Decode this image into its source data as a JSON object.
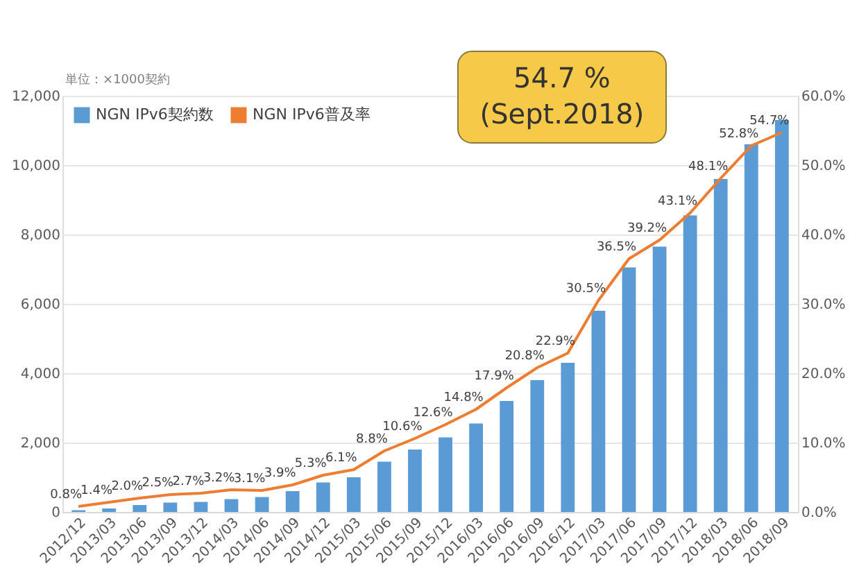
{
  "chart_data": {
    "type": "bar",
    "categories": [
      "2012/12",
      "2013/03",
      "2013/06",
      "2013/09",
      "2013/12",
      "2014/03",
      "2014/06",
      "2014/09",
      "2014/12",
      "2015/03",
      "2015/06",
      "2015/09",
      "2015/12",
      "2016/03",
      "2016/06",
      "2016/09",
      "2016/12",
      "2017/03",
      "2017/06",
      "2017/09",
      "2017/12",
      "2018/03",
      "2018/06",
      "2018/09"
    ],
    "series": [
      {
        "name": "NGN IPv6契約数",
        "color": "#5b9bd5",
        "values": [
          50,
          100,
          200,
          270,
          290,
          370,
          430,
          600,
          850,
          1000,
          1450,
          1800,
          2150,
          2550,
          3200,
          3800,
          4300,
          5800,
          7050,
          7650,
          8550,
          9600,
          10600,
          11300
        ]
      },
      {
        "name": "NGN IPv6普及率",
        "type": "line",
        "axis": "y2",
        "color": "#ed7d31",
        "values": [
          0.8,
          1.4,
          2.0,
          2.5,
          2.7,
          3.2,
          3.1,
          3.9,
          5.3,
          6.1,
          8.8,
          10.6,
          12.6,
          14.8,
          17.9,
          20.8,
          22.9,
          30.5,
          36.5,
          39.2,
          43.1,
          48.1,
          52.8,
          54.7
        ],
        "value_labels": [
          "0.8%",
          "1.4%",
          "2.0%",
          "2.5%",
          "2.7%",
          "3.2%",
          "3.1%",
          "3.9%",
          "5.3%",
          "6.1%",
          "8.8%",
          "10.6%",
          "12.6%",
          "14.8%",
          "17.9%",
          "20.8%",
          "22.9%",
          "30.5%",
          "36.5%",
          "39.2%",
          "43.1%",
          "48.1%",
          "52.8%",
          "54.7%"
        ]
      }
    ],
    "ylim": [
      0,
      12000
    ],
    "yticks": [
      {
        "value": 0,
        "label": "0"
      },
      {
        "value": 2000,
        "label": "2,000"
      },
      {
        "value": 4000,
        "label": "4,000"
      },
      {
        "value": 6000,
        "label": "6,000"
      },
      {
        "value": 8000,
        "label": "8,000"
      },
      {
        "value": 10000,
        "label": "10,000"
      },
      {
        "value": 12000,
        "label": "12,000"
      }
    ],
    "y2lim": [
      0,
      60
    ],
    "y2ticks": [
      {
        "value": 0,
        "label": "0.0%"
      },
      {
        "value": 10,
        "label": "10.0%"
      },
      {
        "value": 20,
        "label": "20.0%"
      },
      {
        "value": 30,
        "label": "30.0%"
      },
      {
        "value": 40,
        "label": "40.0%"
      },
      {
        "value": 50,
        "label": "50.0%"
      },
      {
        "value": 60,
        "label": "60.0%"
      }
    ],
    "annotations": [
      "単位：×1000契約",
      "54.7 %\n(Sept.2018)"
    ],
    "grid": "y",
    "legend": "top left",
    "marker": "none",
    "line_style": "solid"
  }
}
